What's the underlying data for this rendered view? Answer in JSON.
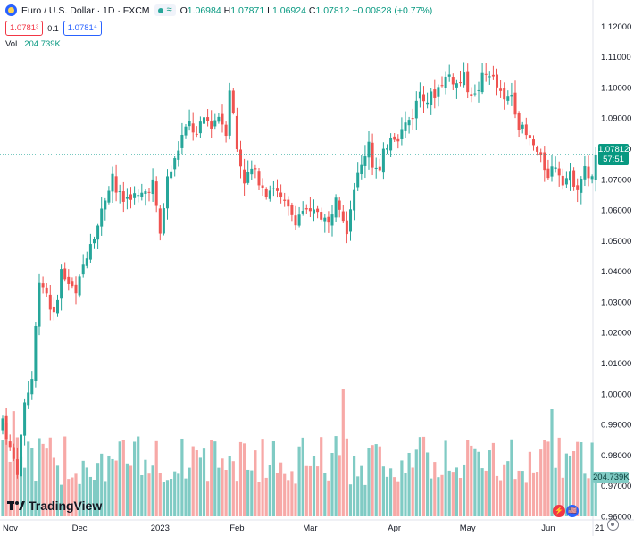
{
  "legend": {
    "symbol_title": "Euro / U.S. Dollar · 1D · FXCM",
    "open_label": "O",
    "open_value": "1.06984",
    "high_label": "H",
    "high_value": "1.07871",
    "low_label": "L",
    "low_value": "1.06924",
    "close_label": "C",
    "close_value": "1.07812",
    "change": "+0.00828 (+0.77%)"
  },
  "trade": {
    "sell": "1.0781³",
    "spread": "0.1",
    "buy": "1.0781⁴"
  },
  "volume": {
    "label": "Vol",
    "value": "204.739K"
  },
  "price_tag": {
    "price": "1.07812",
    "countdown": "57:51"
  },
  "volume_tag": "204.739K",
  "branding": "TradingView",
  "badges": [
    "⚡",
    "🇺🇸"
  ],
  "colors": {
    "up": "#26a69a",
    "down": "#ef5350",
    "vol_up": "#80cbc4",
    "vol_down": "#f7a9a7",
    "accent": "#2962ff"
  },
  "icons": {
    "symbol": "euro-usd-icon",
    "settings": "gear-icon"
  },
  "chart_data": {
    "type": "candlestick",
    "title": "Euro / U.S. Dollar · 1D · FXCM",
    "y_ticks": [
      "0.96000",
      "0.97000",
      "0.98000",
      "0.99000",
      "1.00000",
      "1.01000",
      "1.02000",
      "1.03000",
      "1.04000",
      "1.05000",
      "1.06000",
      "1.07000",
      "1.08000",
      "1.09000",
      "1.10000",
      "1.11000",
      "1.12000"
    ],
    "ylim": [
      0.96,
      1.123
    ],
    "x_ticks": [
      {
        "label": "Nov",
        "t": 0
      },
      {
        "label": "Dec",
        "t": 21
      },
      {
        "label": "2023",
        "t": 43
      },
      {
        "label": "Feb",
        "t": 64
      },
      {
        "label": "Mar",
        "t": 84
      },
      {
        "label": "Apr",
        "t": 107
      },
      {
        "label": "May",
        "t": 127
      },
      {
        "label": "Jun",
        "t": 149
      },
      {
        "label": "21",
        "t": 163
      }
    ],
    "last_price": 1.07812,
    "anchors": [
      [
        0,
        0.992
      ],
      [
        2,
        0.982
      ],
      [
        4,
        0.975
      ],
      [
        6,
        0.997
      ],
      [
        8,
        1.005
      ],
      [
        10,
        1.038
      ],
      [
        12,
        1.033
      ],
      [
        14,
        1.025
      ],
      [
        16,
        1.04
      ],
      [
        18,
        1.036
      ],
      [
        20,
        1.032
      ],
      [
        22,
        1.042
      ],
      [
        24,
        1.05
      ],
      [
        26,
        1.055
      ],
      [
        28,
        1.064
      ],
      [
        30,
        1.072
      ],
      [
        31,
        1.066
      ],
      [
        33,
        1.063
      ],
      [
        35,
        1.065
      ],
      [
        37,
        1.064
      ],
      [
        39,
        1.066
      ],
      [
        41,
        1.069
      ],
      [
        42,
        1.06
      ],
      [
        43,
        1.052
      ],
      [
        45,
        1.07
      ],
      [
        47,
        1.076
      ],
      [
        49,
        1.084
      ],
      [
        51,
        1.088
      ],
      [
        53,
        1.084
      ],
      [
        55,
        1.09
      ],
      [
        57,
        1.088
      ],
      [
        59,
        1.091
      ],
      [
        61,
        1.086
      ],
      [
        62,
        1.1
      ],
      [
        63,
        1.091
      ],
      [
        64,
        1.08
      ],
      [
        65,
        1.075
      ],
      [
        66,
        1.07
      ],
      [
        68,
        1.073
      ],
      [
        70,
        1.07
      ],
      [
        72,
        1.066
      ],
      [
        74,
        1.068
      ],
      [
        76,
        1.063
      ],
      [
        78,
        1.06
      ],
      [
        80,
        1.057
      ],
      [
        82,
        1.06
      ],
      [
        84,
        1.058
      ],
      [
        86,
        1.06
      ],
      [
        88,
        1.057
      ],
      [
        89,
        1.055
      ],
      [
        90,
        1.06
      ],
      [
        91,
        1.066
      ],
      [
        93,
        1.058
      ],
      [
        94,
        1.054
      ],
      [
        95,
        1.061
      ],
      [
        96,
        1.068
      ],
      [
        98,
        1.074
      ],
      [
        100,
        1.083
      ],
      [
        101,
        1.075
      ],
      [
        103,
        1.072
      ],
      [
        104,
        1.078
      ],
      [
        106,
        1.085
      ],
      [
        108,
        1.084
      ],
      [
        110,
        1.088
      ],
      [
        112,
        1.091
      ],
      [
        114,
        1.099
      ],
      [
        116,
        1.096
      ],
      [
        118,
        1.098
      ],
      [
        120,
        1.102
      ],
      [
        122,
        1.104
      ],
      [
        124,
        1.101
      ],
      [
        126,
        1.103
      ],
      [
        127,
        1.1
      ],
      [
        129,
        1.097
      ],
      [
        131,
        1.103
      ],
      [
        133,
        1.105
      ],
      [
        135,
        1.1
      ],
      [
        137,
        1.095
      ],
      [
        139,
        1.098
      ],
      [
        141,
        1.088
      ],
      [
        143,
        1.084
      ],
      [
        145,
        1.081
      ],
      [
        147,
        1.076
      ],
      [
        149,
        1.072
      ],
      [
        151,
        1.075
      ],
      [
        153,
        1.07
      ],
      [
        155,
        1.071
      ],
      [
        157,
        1.068
      ],
      [
        159,
        1.073
      ],
      [
        161,
        1.07
      ],
      [
        162,
        1.078
      ]
    ]
  }
}
